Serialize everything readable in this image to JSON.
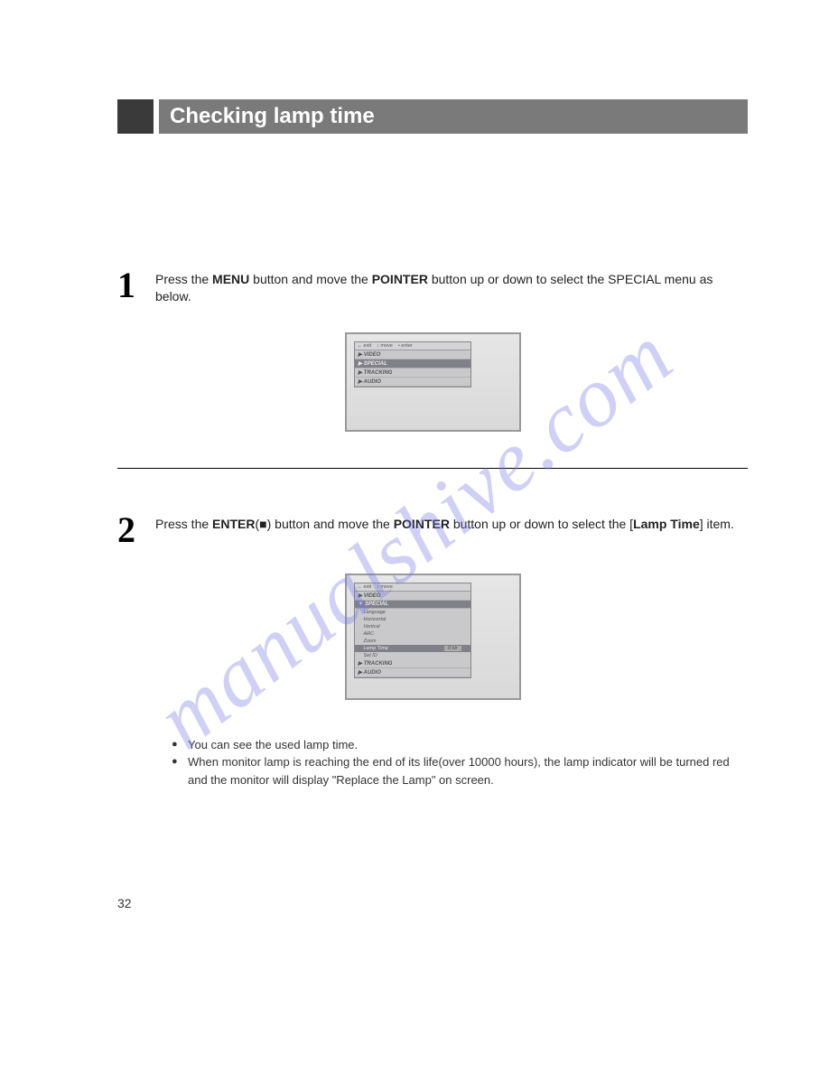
{
  "title": "Checking lamp time",
  "watermark": "manualshive.com",
  "page_number": "32",
  "steps": [
    {
      "num": "1",
      "segments": [
        {
          "t": "Press the "
        },
        {
          "t": "MENU",
          "b": true
        },
        {
          "t": " button and move the "
        },
        {
          "t": "POINTER",
          "b": true
        },
        {
          "t": " button up or down to select the SPECIAL menu as below."
        }
      ],
      "osd": {
        "header": [
          "← exit",
          "↕ move",
          "• enter"
        ],
        "items": [
          {
            "label": "▶ VIDEO"
          },
          {
            "label": "▶ SPECIAL",
            "selected": true
          },
          {
            "label": "▶ TRACKING"
          },
          {
            "label": "▶ AUDIO"
          }
        ]
      }
    },
    {
      "num": "2",
      "segments": [
        {
          "t": "Press the "
        },
        {
          "t": "ENTER",
          "b": true
        },
        {
          "t": "(■) button and move the "
        },
        {
          "t": "POINTER",
          "b": true
        },
        {
          "t": " button up or down to select the  ["
        },
        {
          "t": "Lamp Time",
          "b": true
        },
        {
          "t": "] item."
        }
      ],
      "osd": {
        "header": [
          "← exit",
          "↕ move"
        ],
        "items": [
          {
            "label": "▶ VIDEO"
          },
          {
            "label": "▼ SPECIAL",
            "selected": true,
            "subs": [
              {
                "label": "Language"
              },
              {
                "label": "Horizontal"
              },
              {
                "label": "Vertical"
              },
              {
                "label": "ARC"
              },
              {
                "label": "Zoom"
              },
              {
                "label": "Lamp Time",
                "selected": true,
                "value": "0 Hr"
              },
              {
                "label": "Set ID"
              }
            ]
          },
          {
            "label": "▶ TRACKING"
          },
          {
            "label": "▶ AUDIO"
          }
        ]
      }
    }
  ],
  "bullets": [
    "You can see the used lamp time.",
    "When monitor lamp is reaching the end of its life(over 10000 hours), the lamp indicator will be turned red and the monitor will display \"Replace the Lamp\" on screen."
  ]
}
